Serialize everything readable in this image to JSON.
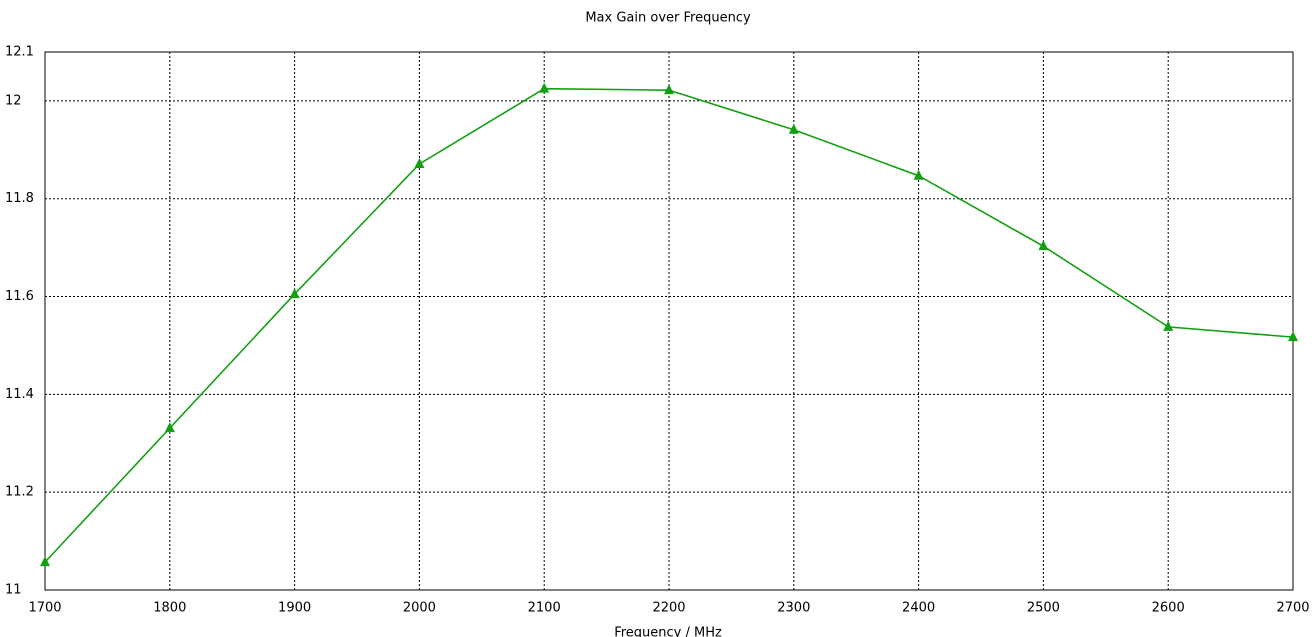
{
  "chart_data": {
    "type": "line",
    "title": "Max Gain over Frequency",
    "x_label": "Frequency / MHz",
    "x": [
      1700,
      1800,
      1900,
      2000,
      2100,
      2200,
      2300,
      2400,
      2500,
      2600,
      2700
    ],
    "series": [
      {
        "color": "#12a012",
        "marker": "triangle",
        "values": [
          11.057,
          11.331,
          11.605,
          11.871,
          12.025,
          12.022,
          11.941,
          11.847,
          11.703,
          11.538,
          11.517
        ]
      }
    ],
    "xlim": [
      1700,
      2700
    ],
    "xticks": [
      1700,
      1800,
      1900,
      2000,
      2100,
      2200,
      2300,
      2400,
      2500,
      2600,
      2700
    ],
    "ylim": [
      11,
      12.1
    ],
    "yticks": [
      11,
      11.2,
      11.4,
      11.6,
      11.8,
      12,
      12.1
    ],
    "grid": true
  }
}
